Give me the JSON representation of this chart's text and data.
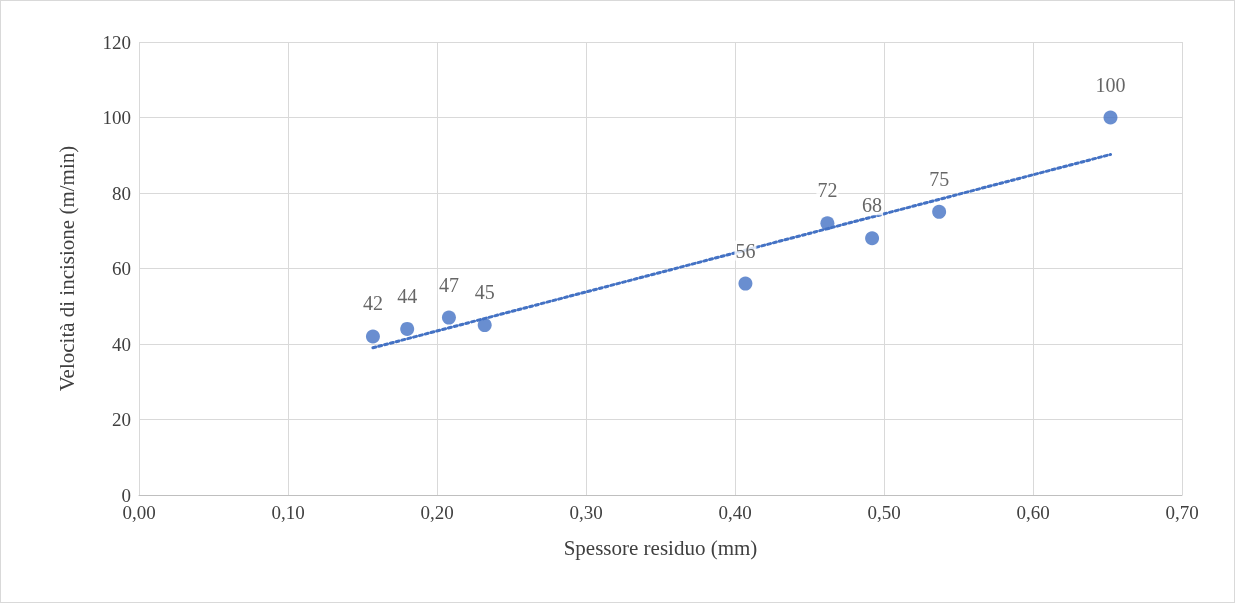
{
  "chart_data": {
    "type": "scatter",
    "xlabel": "Spessore residuo (mm)",
    "ylabel": "Velocità di incisione (m/min)",
    "series": [
      {
        "color": "#4472c4",
        "x": [
          0.157,
          0.18,
          0.208,
          0.232,
          0.407,
          0.462,
          0.492,
          0.537,
          0.652
        ],
        "values": [
          42,
          44,
          47,
          45,
          56,
          72,
          68,
          75,
          100
        ],
        "value_labels": [
          "42",
          "44",
          "47",
          "45",
          "56",
          "72",
          "68",
          "75",
          "100"
        ]
      },
      {
        "type": "line",
        "color": "#4472c4",
        "line_style": "dotted",
        "marker": "none",
        "x": [
          0.157,
          0.652
        ],
        "values": [
          39.0,
          90.2
        ]
      }
    ],
    "marker": "circle",
    "grid": true,
    "xlim": [
      0,
      0.7
    ],
    "xticks": [
      {
        "value": 0,
        "label": "0,00"
      },
      {
        "value": 0.1,
        "label": "0,10"
      },
      {
        "value": 0.2,
        "label": "0,20"
      },
      {
        "value": 0.3,
        "label": "0,30"
      },
      {
        "value": 0.4,
        "label": "0,40"
      },
      {
        "value": 0.5,
        "label": "0,50"
      },
      {
        "value": 0.6,
        "label": "0,60"
      },
      {
        "value": 0.7,
        "label": "0,70"
      }
    ],
    "ylim": [
      0,
      120
    ],
    "yticks": [
      0,
      20,
      40,
      60,
      80,
      100,
      120
    ]
  }
}
